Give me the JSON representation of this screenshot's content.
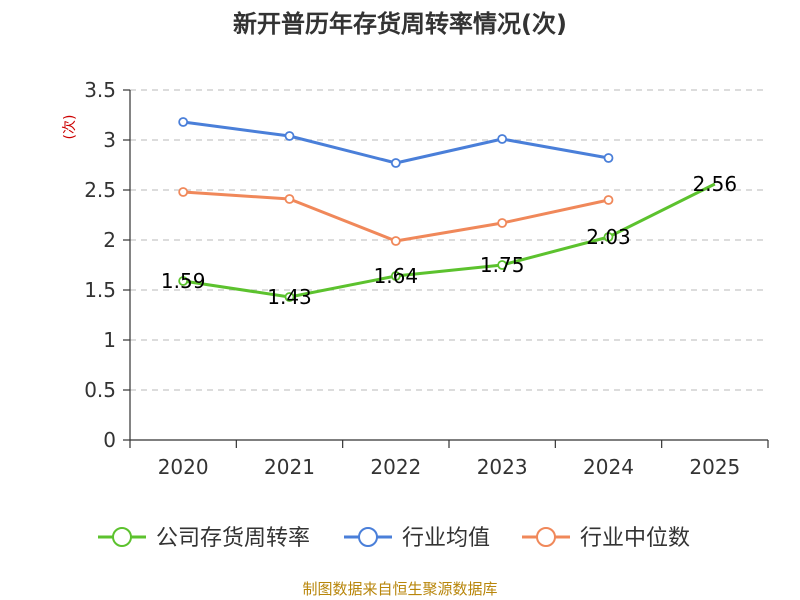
{
  "chart_data": {
    "type": "line",
    "title": "新开普历年存货周转率情况(次)",
    "ylabel": "(次)",
    "categories": [
      "2020",
      "2021",
      "2022",
      "2023",
      "2024",
      "2025"
    ],
    "ylim": [
      0,
      3.5
    ],
    "yticks": [
      "0",
      "0.5",
      "1",
      "1.5",
      "2",
      "2.5",
      "3",
      "3.5"
    ],
    "ytick_values": [
      0,
      0.5,
      1,
      1.5,
      2,
      2.5,
      3,
      3.5
    ],
    "grid": true,
    "legend_position": "bottom",
    "series": [
      {
        "name": "公司存货周转率",
        "color": "#5cc22e",
        "values": [
          1.59,
          1.43,
          1.64,
          1.75,
          2.03,
          2.56
        ],
        "labels": [
          "1.59",
          "1.43",
          "1.64",
          "1.75",
          "2.03",
          "2.56"
        ]
      },
      {
        "name": "行业均值",
        "color": "#4a7fd9",
        "values": [
          3.18,
          3.04,
          2.77,
          3.01,
          2.82,
          null
        ]
      },
      {
        "name": "行业中位数",
        "color": "#f0885a",
        "values": [
          2.48,
          2.41,
          1.99,
          2.17,
          2.4,
          null
        ]
      }
    ]
  },
  "source": "制图数据来自恒生聚源数据库"
}
